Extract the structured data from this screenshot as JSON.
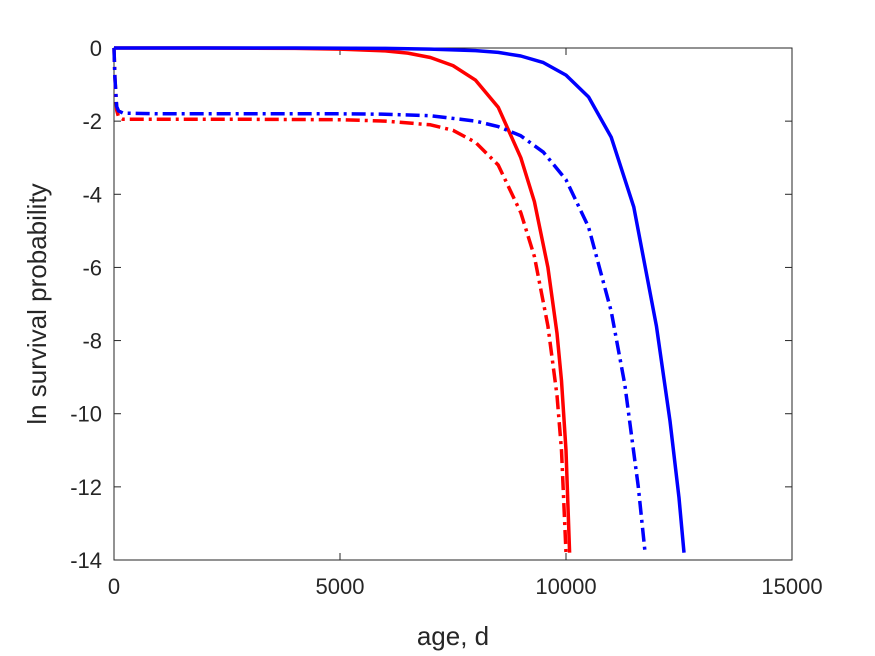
{
  "chart_data": {
    "type": "line",
    "title": "",
    "xlabel": "age, d",
    "ylabel": "ln survival probability",
    "xlim": [
      0,
      15000
    ],
    "ylim": [
      -14,
      0
    ],
    "xticks": [
      0,
      5000,
      10000,
      15000
    ],
    "yticks": [
      0,
      -2,
      -4,
      -6,
      -8,
      -10,
      -12,
      -14
    ],
    "xtick_labels": [
      "0",
      "5000",
      "10000",
      "15000"
    ],
    "ytick_labels": [
      "0",
      "-2",
      "-4",
      "-6",
      "-8",
      "-10",
      "-12",
      "-14"
    ],
    "grid": false,
    "legend": "none",
    "series": [
      {
        "color": "#ff0000",
        "style": "solid",
        "x": [
          0,
          2000,
          4000,
          5000,
          6000,
          6500,
          7000,
          7500,
          8000,
          8500,
          9000,
          9300,
          9600,
          9800,
          9900,
          10000,
          10080
        ],
        "y": [
          0,
          0,
          -0.01,
          -0.03,
          -0.08,
          -0.14,
          -0.26,
          -0.48,
          -0.88,
          -1.62,
          -3.0,
          -4.2,
          -6.0,
          -7.8,
          -9.1,
          -11.0,
          -13.8
        ]
      },
      {
        "color": "#0000ff",
        "style": "solid",
        "x": [
          0,
          2000,
          4000,
          6000,
          7000,
          8000,
          8500,
          9000,
          9500,
          10000,
          10500,
          11000,
          11500,
          12000,
          12300,
          12500,
          12610
        ],
        "y": [
          0,
          0,
          0,
          -0.01,
          -0.03,
          -0.07,
          -0.12,
          -0.22,
          -0.4,
          -0.74,
          -1.34,
          -2.44,
          -4.35,
          -7.6,
          -10.2,
          -12.3,
          -13.8
        ]
      },
      {
        "color": "#ff0000",
        "style": "dashdot",
        "x": [
          0,
          20,
          60,
          100,
          200,
          1000,
          3000,
          5000,
          6000,
          7000,
          7500,
          8000,
          8500,
          9000,
          9300,
          9600,
          9800,
          9900,
          10000
        ],
        "y": [
          0,
          -0.8,
          -1.7,
          -1.88,
          -1.95,
          -1.95,
          -1.95,
          -1.96,
          -2.0,
          -2.1,
          -2.25,
          -2.58,
          -3.2,
          -4.5,
          -5.7,
          -7.6,
          -9.5,
          -11.0,
          -13.8
        ]
      },
      {
        "color": "#0000ff",
        "style": "dashdot",
        "x": [
          0,
          20,
          60,
          100,
          200,
          1000,
          3000,
          5000,
          6000,
          7000,
          8000,
          8500,
          9000,
          9500,
          10000,
          10500,
          11000,
          11300,
          11600,
          11750
        ],
        "y": [
          0,
          -0.8,
          -1.6,
          -1.72,
          -1.78,
          -1.8,
          -1.8,
          -1.8,
          -1.81,
          -1.85,
          -2.0,
          -2.15,
          -2.4,
          -2.85,
          -3.6,
          -4.9,
          -7.2,
          -9.2,
          -12.0,
          -13.8
        ]
      }
    ]
  }
}
